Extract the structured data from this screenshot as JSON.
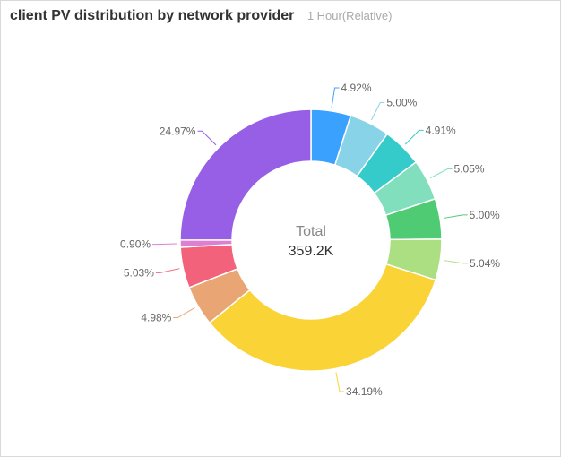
{
  "header": {
    "title": "client PV distribution by network provider",
    "time_range": "1 Hour(Relative)"
  },
  "chart_data": {
    "type": "pie",
    "variant": "donut",
    "title": "client PV distribution by network provider",
    "center_label": "Total",
    "center_value": "359.2K",
    "slices": [
      {
        "value": 4.92,
        "label": "4.92%",
        "color": "#3ba1ff"
      },
      {
        "value": 5.0,
        "label": "5.00%",
        "color": "#88d3e8"
      },
      {
        "value": 4.91,
        "label": "4.91%",
        "color": "#36cbcb"
      },
      {
        "value": 5.05,
        "label": "5.05%",
        "color": "#82dfbe"
      },
      {
        "value": 5.0,
        "label": "5.00%",
        "color": "#4ecb73"
      },
      {
        "value": 5.04,
        "label": "5.04%",
        "color": "#acdf82"
      },
      {
        "value": 34.19,
        "label": "34.19%",
        "color": "#fad337"
      },
      {
        "value": 4.98,
        "label": "4.98%",
        "color": "#e9a674"
      },
      {
        "value": 5.03,
        "label": "5.03%",
        "color": "#f2637b"
      },
      {
        "value": 0.9,
        "label": "0.90%",
        "color": "#dc81d2"
      },
      {
        "value": 24.97,
        "label": "24.97%",
        "color": "#975fe5"
      }
    ]
  }
}
